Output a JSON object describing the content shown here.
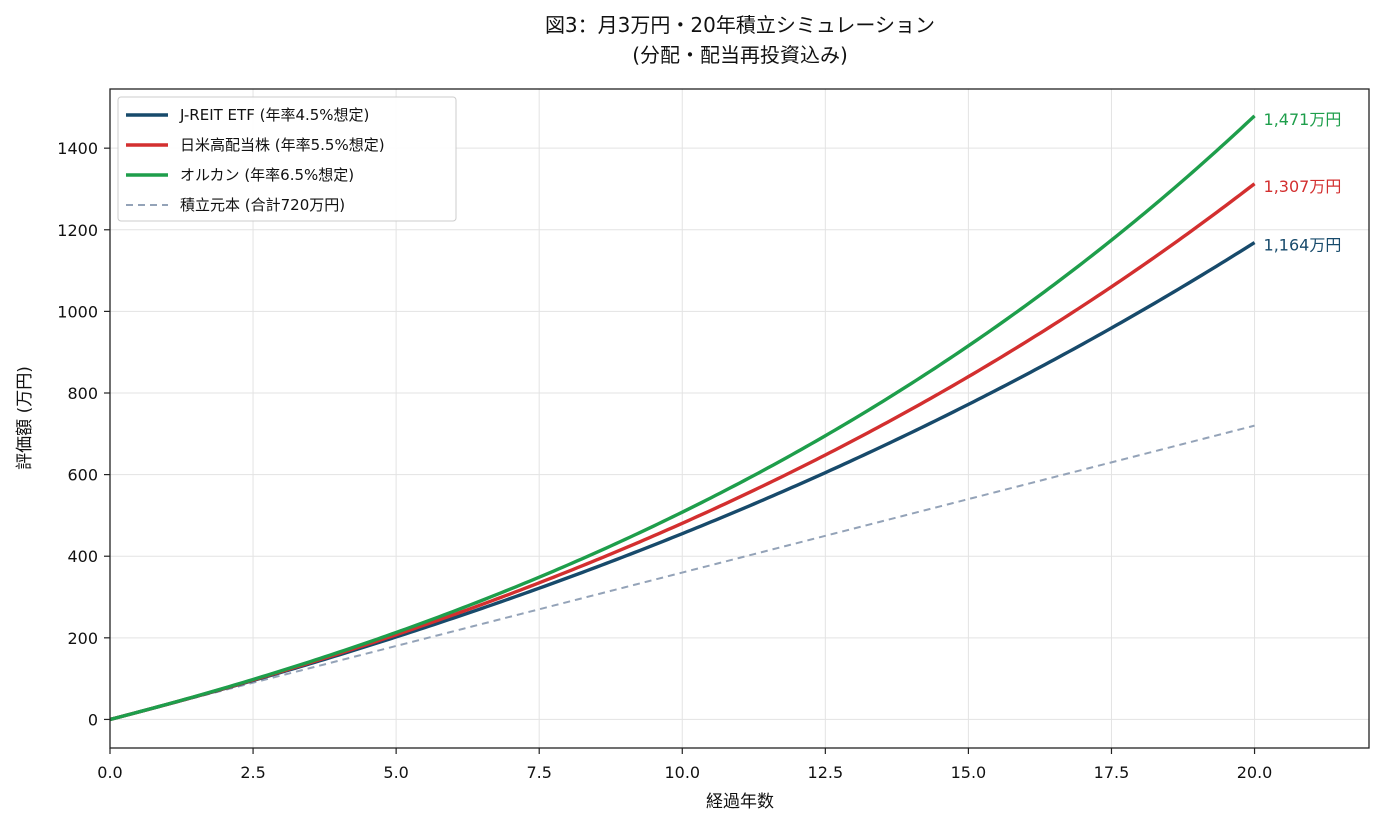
{
  "chart_data": {
    "type": "line",
    "title": "図3：月3万円・20年積立シミュレーション",
    "subtitle": "(分配・配当再投資込み)",
    "xlabel": "経過年数",
    "ylabel": "評価額 (万円)",
    "xlim": [
      0,
      22
    ],
    "ylim": [
      -70,
      1545
    ],
    "x_ticks": [
      "0.0",
      "2.5",
      "5.0",
      "7.5",
      "10.0",
      "12.5",
      "15.0",
      "17.5",
      "20.0"
    ],
    "x_tick_values": [
      0,
      2.5,
      5,
      7.5,
      10,
      12.5,
      15,
      17.5,
      20
    ],
    "y_ticks": [
      "0",
      "200",
      "400",
      "600",
      "800",
      "1000",
      "1200",
      "1400"
    ],
    "y_tick_values": [
      0,
      200,
      400,
      600,
      800,
      1000,
      1200,
      1400
    ],
    "grid": true,
    "legend_position": "top-left",
    "monthly_contribution": 3,
    "years": 20,
    "series": [
      {
        "name": "J-REIT ETF (年率4.5%想定)",
        "annual_rate": 0.045,
        "color": "#174a6b",
        "style": "solid",
        "end_value": 1164,
        "end_label": "1,164万円"
      },
      {
        "name": "日米高配当株 (年率5.5%想定)",
        "annual_rate": 0.055,
        "color": "#d32f2f",
        "style": "solid",
        "end_value": 1307,
        "end_label": "1,307万円"
      },
      {
        "name": "オルカン (年率6.5%想定)",
        "annual_rate": 0.065,
        "color": "#1e9e4b",
        "style": "solid",
        "end_value": 1471,
        "end_label": "1,471万円"
      },
      {
        "name": "積立元本 (合計720万円)",
        "annual_rate": 0,
        "color": "#94a3b8",
        "style": "dashed",
        "end_value": 720,
        "end_label": ""
      }
    ]
  }
}
